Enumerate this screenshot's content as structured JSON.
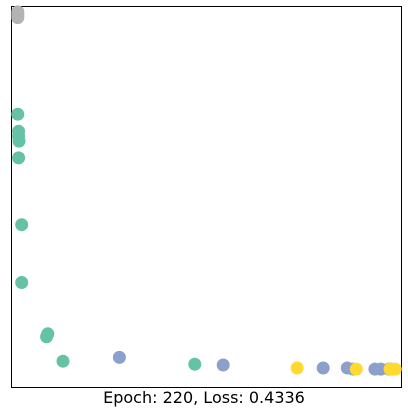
{
  "caption": "Epoch: 220, Loss: 0.4336",
  "chart_data": {
    "type": "scatter",
    "title": "",
    "xlabel": "",
    "ylabel": "",
    "xlim": [
      0,
      100
    ],
    "ylim": [
      0,
      100
    ],
    "grid": false,
    "ticks": false,
    "legend": "none",
    "series": [
      {
        "color": "#b3b3b3",
        "points": [
          [
            1.5,
            98.7
          ],
          [
            1.5,
            98.2
          ],
          [
            1.5,
            97.7
          ],
          [
            1.5,
            97.2
          ]
        ]
      },
      {
        "color": "#66c2a5",
        "points": [
          [
            1.5,
            71.8
          ],
          [
            1.7,
            67.3
          ],
          [
            1.7,
            66.0
          ],
          [
            1.8,
            64.7
          ],
          [
            1.7,
            60.3
          ],
          [
            2.5,
            42.7
          ],
          [
            2.5,
            27.5
          ],
          [
            9.2,
            14.0
          ],
          [
            8.9,
            13.2
          ],
          [
            13.1,
            6.8
          ],
          [
            47.0,
            6.0
          ],
          [
            87.7,
            4.7
          ]
        ]
      },
      {
        "color": "#8da0cb",
        "points": [
          [
            27.6,
            7.8
          ],
          [
            54.3,
            5.8
          ],
          [
            80.0,
            5.0
          ],
          [
            86.2,
            5.0
          ],
          [
            93.3,
            4.7
          ],
          [
            94.8,
            4.7
          ],
          [
            96.9,
            4.7
          ],
          [
            97.4,
            4.7
          ]
        ]
      },
      {
        "color": "#ffd92f",
        "points": [
          [
            73.3,
            5.0
          ],
          [
            88.5,
            4.7
          ],
          [
            97.2,
            4.7
          ],
          [
            98.5,
            4.7
          ]
        ]
      }
    ]
  }
}
